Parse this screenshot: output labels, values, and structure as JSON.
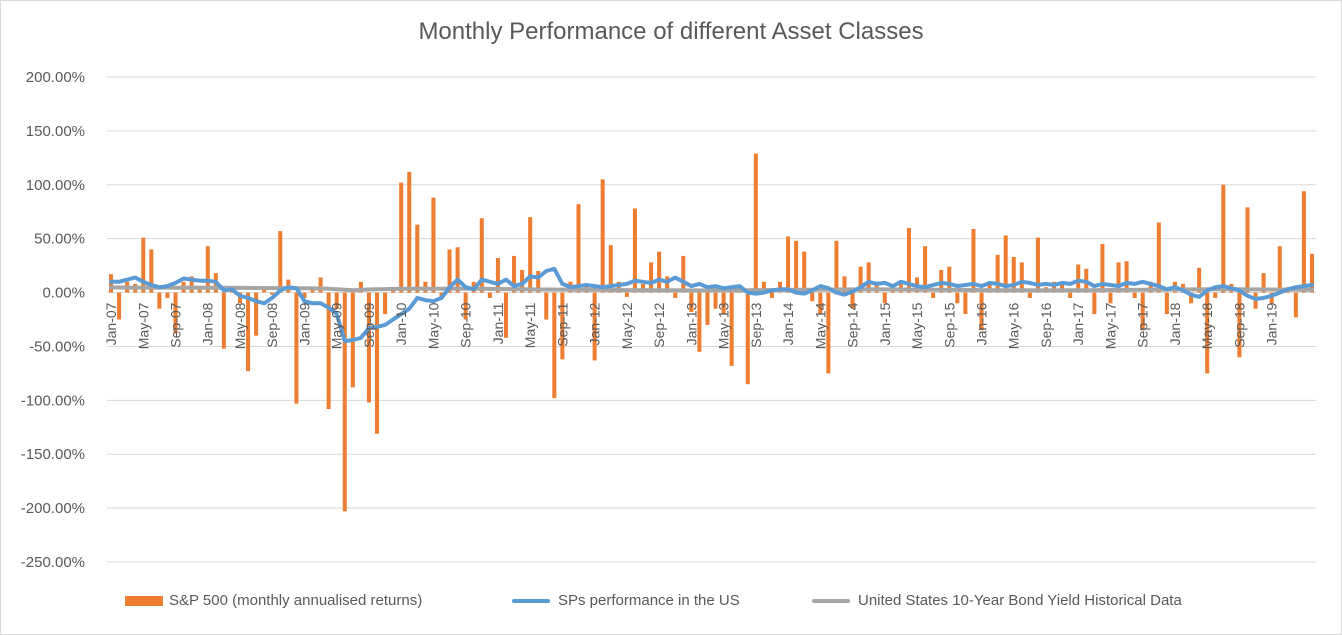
{
  "chart_data": {
    "type": "bar+line",
    "title": "Monthly Performance of different Asset Classes",
    "xlabel": "",
    "ylabel": "",
    "ylim": [
      -2.5,
      2.0
    ],
    "y_ticks": [
      "200.00%",
      "150.00%",
      "100.00%",
      "50.00%",
      "0.00%",
      "-50.00%",
      "-100.00%",
      "-150.00%",
      "-200.00%",
      "-250.00%"
    ],
    "y_tick_values": [
      2.0,
      1.5,
      1.0,
      0.5,
      0.0,
      -0.5,
      -1.0,
      -1.5,
      -2.0,
      -2.5
    ],
    "x_tick_labels": [
      "Jan-07",
      "May-07",
      "Sep-07",
      "Jan-08",
      "May-08",
      "Sep-08",
      "Jan-09",
      "May-09",
      "Sep-09",
      "Jan-10",
      "May-10",
      "Sep-10",
      "Jan-11",
      "May-11",
      "Sep-11",
      "Jan-12",
      "May-12",
      "Sep-12",
      "Jan-13",
      "May-13",
      "Sep-13",
      "Jan-14",
      "May-14",
      "Sep-14",
      "Jan-15",
      "May-15",
      "Sep-15",
      "Jan-16",
      "May-16",
      "Sep-16",
      "Jan-17",
      "May-17",
      "Sep-17",
      "Jan-18",
      "May-18",
      "Sep-18",
      "Jan-19"
    ],
    "x_tick_every": 4,
    "n_points": 150,
    "grid": true,
    "legend_position": "bottom",
    "colors": {
      "sp500": "#ED7D31",
      "sps": "#5B9BD5",
      "bond": "#A5A5A5",
      "grid": "#D9D9D9",
      "text": "#595959"
    },
    "series": [
      {
        "name": "S&P 500 (monthly annualised returns)",
        "kind": "bar",
        "values": [
          0.17,
          -0.25,
          0.1,
          0.08,
          0.51,
          0.4,
          -0.15,
          -0.05,
          -0.38,
          0.1,
          0.15,
          0.06,
          0.43,
          0.18,
          -0.52,
          0.02,
          -0.1,
          -0.73,
          -0.4,
          0.05,
          -0.02,
          0.57,
          0.12,
          -1.03,
          -0.05,
          0.02,
          0.14,
          -1.08,
          -0.15,
          -2.03,
          -0.88,
          0.1,
          -1.02,
          -1.31,
          -0.2,
          0.02,
          1.02,
          1.12,
          0.63,
          0.1,
          0.88,
          -0.05,
          0.4,
          0.42,
          -0.25,
          0.1,
          0.69,
          -0.05,
          0.32,
          -0.42,
          0.34,
          0.21,
          0.7,
          0.2,
          -0.25,
          -0.98,
          -0.62,
          0.1,
          0.82,
          0.05,
          -0.63,
          1.05,
          0.44,
          0.1,
          -0.04,
          0.78,
          0.08,
          0.28,
          0.38,
          0.15,
          -0.05,
          0.34,
          -0.18,
          -0.55,
          -0.3,
          -0.15,
          -0.2,
          -0.68,
          0.05,
          -0.85,
          1.29,
          0.1,
          -0.05,
          0.1,
          0.52,
          0.48,
          0.38,
          -0.08,
          -0.2,
          -0.75,
          0.48,
          0.15,
          -0.15,
          0.24,
          0.28,
          0.1,
          -0.1,
          0.05,
          0.08,
          0.6,
          0.14,
          0.43,
          -0.05,
          0.21,
          0.24,
          -0.1,
          -0.2,
          0.59,
          -0.35,
          0.1,
          0.35,
          0.53,
          0.33,
          0.28,
          -0.05,
          0.51,
          0.05,
          0.1,
          0.08,
          -0.05,
          0.26,
          0.22,
          -0.2,
          0.45,
          -0.1,
          0.28,
          0.29,
          -0.05,
          -0.35,
          0.1,
          0.65,
          -0.2,
          0.1,
          0.08,
          -0.1,
          0.23,
          -0.75,
          -0.05,
          1.0,
          0.08,
          -0.6,
          0.79,
          -0.15,
          0.18,
          -0.1,
          0.43,
          0.05,
          -0.23,
          0.94,
          0.36
        ]
      },
      {
        "name": "SPs performance in the US",
        "kind": "line",
        "values": [
          0.1,
          0.1,
          0.12,
          0.14,
          0.1,
          0.07,
          0.05,
          0.06,
          0.09,
          0.13,
          0.12,
          0.11,
          0.11,
          0.1,
          0.02,
          0.03,
          -0.03,
          -0.05,
          -0.08,
          -0.1,
          -0.05,
          0.02,
          0.05,
          0.04,
          -0.08,
          -0.1,
          -0.1,
          -0.14,
          -0.2,
          -0.45,
          -0.44,
          -0.42,
          -0.33,
          -0.32,
          -0.3,
          -0.25,
          -0.2,
          -0.15,
          -0.05,
          -0.07,
          -0.08,
          -0.05,
          0.05,
          0.12,
          0.05,
          0.03,
          0.12,
          0.1,
          0.08,
          0.12,
          0.06,
          0.08,
          0.15,
          0.14,
          0.2,
          0.22,
          0.08,
          0.05,
          0.06,
          0.07,
          0.06,
          0.05,
          0.06,
          0.07,
          0.08,
          0.11,
          0.1,
          0.09,
          0.12,
          0.1,
          0.14,
          0.1,
          0.06,
          0.08,
          0.05,
          0.06,
          0.04,
          0.05,
          0.06,
          0.0,
          -0.01,
          0.0,
          0.02,
          0.03,
          0.03,
          0.0,
          -0.01,
          0.02,
          0.06,
          0.04,
          0.0,
          -0.02,
          0.01,
          0.05,
          0.1,
          0.08,
          0.09,
          0.06,
          0.1,
          0.08,
          0.06,
          0.05,
          0.07,
          0.09,
          0.08,
          0.06,
          0.07,
          0.08,
          0.06,
          0.09,
          0.08,
          0.06,
          0.07,
          0.1,
          0.09,
          0.07,
          0.08,
          0.07,
          0.09,
          0.08,
          0.11,
          0.1,
          0.06,
          0.08,
          0.07,
          0.06,
          0.09,
          0.08,
          0.1,
          0.08,
          0.06,
          0.03,
          0.05,
          0.02,
          -0.02,
          -0.04,
          0.02,
          0.05,
          0.06,
          0.04,
          0.02,
          -0.03,
          -0.06,
          -0.05,
          -0.03,
          0.0,
          0.03,
          0.05,
          0.06,
          0.07
        ]
      },
      {
        "name": "United States 10-Year Bond Yield Historical Data",
        "kind": "line",
        "values": [
          0.048,
          0.047,
          0.046,
          0.045,
          0.046,
          0.046,
          0.046,
          0.046,
          0.045,
          0.045,
          0.046,
          0.046,
          0.045,
          0.044,
          0.044,
          0.043,
          0.043,
          0.043,
          0.042,
          0.042,
          0.041,
          0.041,
          0.04,
          0.04,
          0.04,
          0.039,
          0.038,
          0.036,
          0.03,
          0.026,
          0.022,
          0.025,
          0.028,
          0.03,
          0.032,
          0.034,
          0.035,
          0.036,
          0.035,
          0.035,
          0.036,
          0.036,
          0.037,
          0.037,
          0.036,
          0.035,
          0.035,
          0.034,
          0.033,
          0.032,
          0.031,
          0.03,
          0.029,
          0.028,
          0.028,
          0.027,
          0.027,
          0.026,
          0.026,
          0.025,
          0.025,
          0.025,
          0.024,
          0.024,
          0.023,
          0.023,
          0.023,
          0.022,
          0.022,
          0.021,
          0.021,
          0.02,
          0.02,
          0.02,
          0.02,
          0.021,
          0.021,
          0.022,
          0.022,
          0.022,
          0.023,
          0.023,
          0.024,
          0.024,
          0.025,
          0.025,
          0.026,
          0.026,
          0.027,
          0.027,
          0.028,
          0.028,
          0.029,
          0.029,
          0.029,
          0.029,
          0.029,
          0.028,
          0.028,
          0.027,
          0.027,
          0.026,
          0.026,
          0.026,
          0.025,
          0.025,
          0.024,
          0.024,
          0.023,
          0.023,
          0.022,
          0.022,
          0.021,
          0.021,
          0.021,
          0.02,
          0.02,
          0.02,
          0.021,
          0.021,
          0.022,
          0.022,
          0.023,
          0.023,
          0.024,
          0.024,
          0.025,
          0.025,
          0.026,
          0.026,
          0.027,
          0.027,
          0.028,
          0.028,
          0.029,
          0.029,
          0.03,
          0.03,
          0.03,
          0.03,
          0.03,
          0.029,
          0.029,
          0.028,
          0.028,
          0.027,
          0.027,
          0.026,
          0.026,
          0.026
        ]
      }
    ]
  }
}
